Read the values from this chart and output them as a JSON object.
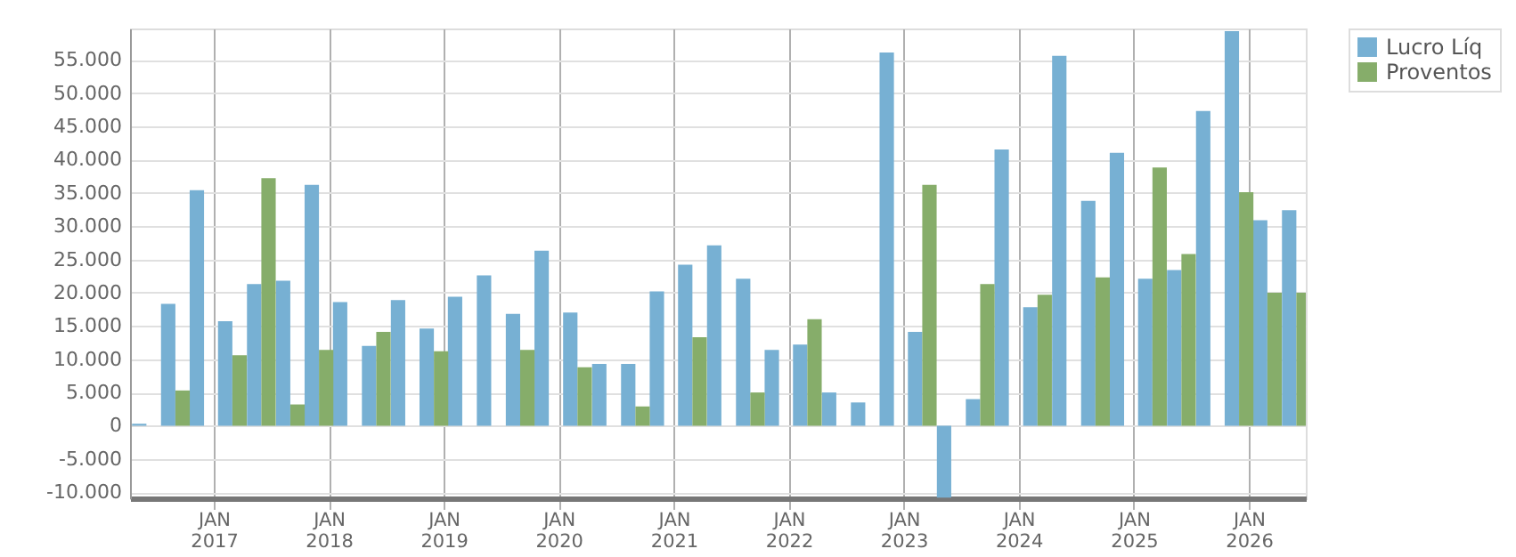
{
  "chart_data": {
    "type": "bar",
    "x": [
      "2016-06",
      "2016-09",
      "2016-12",
      "2017-03",
      "2017-06",
      "2017-09",
      "2017-12",
      "2018-03",
      "2018-06",
      "2018-09",
      "2018-12",
      "2019-03",
      "2019-06",
      "2019-09",
      "2019-12",
      "2020-03",
      "2020-06",
      "2020-09",
      "2020-12",
      "2021-03",
      "2021-06",
      "2021-09",
      "2021-12",
      "2022-03",
      "2022-06",
      "2022-09",
      "2022-12",
      "2023-03",
      "2023-06",
      "2023-09",
      "2023-12",
      "2024-03",
      "2024-06",
      "2024-09",
      "2024-12",
      "2025-03",
      "2025-06",
      "2025-09",
      "2025-12",
      "2026-03",
      "2026-06"
    ],
    "series": [
      {
        "name": "Lucro Líq",
        "color": "#77b0d3",
        "values": [
          300,
          18300,
          35400,
          15700,
          21300,
          21800,
          36200,
          18600,
          12000,
          18900,
          14600,
          19400,
          22600,
          16800,
          26300,
          17000,
          9300,
          9300,
          20200,
          24200,
          27100,
          22100,
          11400,
          12200,
          5000,
          3500,
          56100,
          14100,
          -10800,
          4000,
          41500,
          17800,
          55600,
          33800,
          41000,
          22100,
          23400,
          47300,
          59300,
          30900,
          32400
        ]
      },
      {
        "name": "Proventos",
        "color": "#86ad6a",
        "values": [
          0,
          5300,
          0,
          10600,
          37200,
          3200,
          11400,
          0,
          14100,
          0,
          11200,
          0,
          0,
          11400,
          0,
          8800,
          0,
          2900,
          0,
          13300,
          0,
          5000,
          0,
          16000,
          0,
          0,
          0,
          36200,
          0,
          21300,
          0,
          19700,
          0,
          22300,
          0,
          38800,
          25800,
          0,
          35100,
          20000,
          20000
        ]
      }
    ],
    "xlim": [
      "2016-04-10",
      "2026-07-01"
    ],
    "xticks": [
      {
        "value": "2017-01",
        "label": "JAN 2017"
      },
      {
        "value": "2018-01",
        "label": "JAN 2018"
      },
      {
        "value": "2019-01",
        "label": "JAN 2019"
      },
      {
        "value": "2020-01",
        "label": "JAN 2020"
      },
      {
        "value": "2021-01",
        "label": "JAN 2021"
      },
      {
        "value": "2022-01",
        "label": "JAN 2022"
      },
      {
        "value": "2023-01",
        "label": "JAN 2023"
      },
      {
        "value": "2024-01",
        "label": "JAN 2024"
      },
      {
        "value": "2025-01",
        "label": "JAN 2025"
      },
      {
        "value": "2026-01",
        "label": "JAN 2026"
      }
    ],
    "ylim": [
      -10900,
      59700
    ],
    "yticks": [
      {
        "value": -10000,
        "label": "-10.000"
      },
      {
        "value": -5000,
        "label": "-5.000"
      },
      0,
      {
        "value": 5000,
        "label": "5.000"
      },
      {
        "value": 10000,
        "label": "10.000"
      },
      {
        "value": 15000,
        "label": "15.000"
      },
      {
        "value": 20000,
        "label": "20.000"
      },
      {
        "value": 25000,
        "label": "25.000"
      },
      {
        "value": 30000,
        "label": "30.000"
      },
      {
        "value": 35000,
        "label": "35.000"
      },
      {
        "value": 40000,
        "label": "40.000"
      },
      {
        "value": 45000,
        "label": "45.000"
      },
      {
        "value": 50000,
        "label": "50.000"
      },
      {
        "value": 55000,
        "label": "55.000"
      }
    ],
    "grid": true,
    "legend": "top right"
  }
}
